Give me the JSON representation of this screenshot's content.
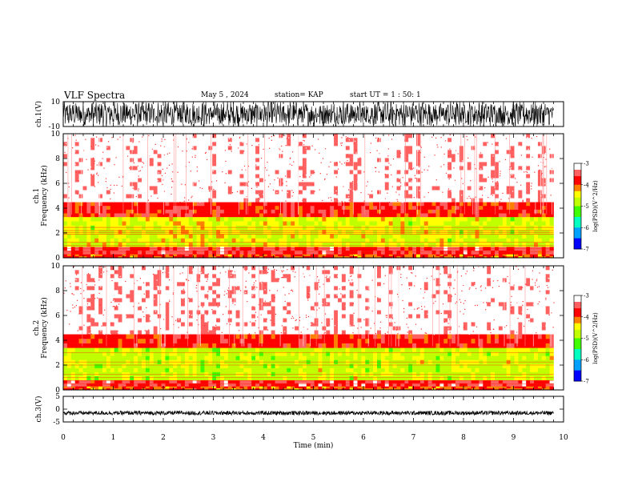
{
  "header": {
    "title": "VLF Spectra",
    "date": "May 5 , 2024",
    "station": "station= KAP",
    "start": "start UT = 1 : 50: 1"
  },
  "colors": {
    "colormap": [
      "#000050",
      "#0000ff",
      "#00c0ff",
      "#00ff80",
      "#c0ff00",
      "#ffff00",
      "#ff8000",
      "#ff0000",
      "#ffc0c0",
      "#ffffff"
    ],
    "trace": "#000000"
  },
  "chart_data": [
    {
      "type": "line",
      "panel": "ch1-waveform",
      "ylabel": "ch.1(V)",
      "ylim": [
        -10,
        10
      ],
      "yticks": [
        "10",
        "-10"
      ],
      "xlim": [
        0,
        10
      ],
      "data_end": 9.8,
      "description": "dense noisy signal mostly between -10 and 10 V"
    },
    {
      "type": "heatmap",
      "panel": "ch1-spectrogram",
      "ylabel": "ch.1\nFrequency (kHz)",
      "ylim": [
        0,
        10
      ],
      "yticks": [
        "0",
        "2",
        "4",
        "6",
        "8",
        "10"
      ],
      "xlim": [
        0,
        10
      ],
      "data_end": 9.8,
      "colorbar": {
        "label": "log(PSD)(V^2/Hz)",
        "range": [
          -7,
          -3
        ],
        "ticks": [
          "-3",
          "-4",
          "-5",
          "-6",
          "-7"
        ]
      },
      "bands": [
        {
          "from": 0.0,
          "to": 0.3,
          "level": -4.0
        },
        {
          "from": 0.3,
          "to": 0.9,
          "level": -3.6
        },
        {
          "from": 0.9,
          "to": 3.3,
          "level": -4.6
        },
        {
          "from": 3.3,
          "to": 4.5,
          "level": -3.8
        },
        {
          "from": 4.5,
          "to": 10.0,
          "level": -3.1
        }
      ],
      "lines_khz": [
        0.5,
        0.75,
        1.0,
        1.25,
        1.9,
        2.05,
        2.2,
        2.45
      ]
    },
    {
      "type": "heatmap",
      "panel": "ch2-spectrogram",
      "ylabel": "ch.2\nFrequency (kHz)",
      "ylim": [
        0,
        10
      ],
      "yticks": [
        "0",
        "2",
        "4",
        "6",
        "8",
        "10"
      ],
      "xlim": [
        0,
        10
      ],
      "data_end": 9.8,
      "colorbar": {
        "label": "log(PSD)(V^2/Hz)",
        "range": [
          -7,
          -3
        ],
        "ticks": [
          "-3",
          "-4",
          "-5",
          "-6",
          "-7"
        ]
      },
      "bands": [
        {
          "from": 0.0,
          "to": 0.3,
          "level": -4.0
        },
        {
          "from": 0.3,
          "to": 0.8,
          "level": -3.6
        },
        {
          "from": 0.8,
          "to": 3.4,
          "level": -4.7
        },
        {
          "from": 3.4,
          "to": 4.5,
          "level": -3.8
        },
        {
          "from": 4.5,
          "to": 10.0,
          "level": -3.1
        }
      ],
      "lines_khz": [
        0.5,
        0.75,
        1.0,
        1.25,
        2.0,
        2.25,
        3.0
      ]
    },
    {
      "type": "line",
      "panel": "ch3-waveform",
      "ylabel": "ch.3(V)",
      "ylim": [
        -5,
        5
      ],
      "yticks": [
        "5",
        "0",
        "-5"
      ],
      "xlim": [
        0,
        10
      ],
      "data_end": 9.8,
      "xlabel": "Time (min)",
      "xticks": [
        "0",
        "1",
        "2",
        "3",
        "4",
        "5",
        "6",
        "7",
        "8",
        "9",
        "10"
      ],
      "center": -1.5,
      "amplitude": 0.8
    }
  ]
}
